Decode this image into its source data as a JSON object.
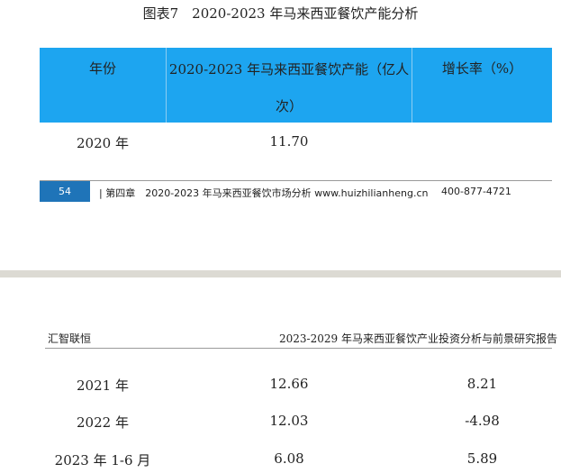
{
  "figure_title": "图表7　2020-2023 年马来西亚餐饮产能分析",
  "table": {
    "headers": {
      "year": "年份",
      "capacity_line1": "2020-2023 年马来西亚餐饮产能（亿人",
      "capacity_line2": "次）",
      "growth": "增长率（%）"
    },
    "rows": [
      {
        "year": "2020 年",
        "capacity": "11.70",
        "growth": ""
      },
      {
        "year": "2021 年",
        "capacity": "12.66",
        "growth": "8.21"
      },
      {
        "year": "2022 年",
        "capacity": "12.03",
        "growth": "-4.98"
      },
      {
        "year": "2023 年 1-6 月",
        "capacity": "6.08",
        "growth": "5.89"
      }
    ]
  },
  "footer": {
    "page_number": "54",
    "text": "|  第四章　2020-2023 年马来西亚餐饮市场分析 www.huizhilianheng.cn",
    "phone": "400-877-4721"
  },
  "next_page_header": {
    "left": "汇智联恒",
    "right": "2023-2029 年马来西亚餐饮产业投资分析与前景研究报告"
  },
  "colors": {
    "table_header_bg": "#1da5f0",
    "page_number_bg": "#1f74b8",
    "page_break": "#dcdad3"
  }
}
